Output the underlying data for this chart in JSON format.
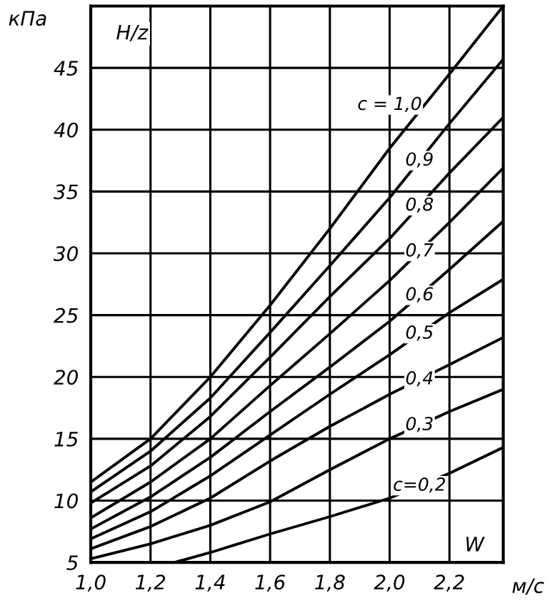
{
  "chart_data": {
    "type": "line",
    "ylabel": "кПа",
    "xlabel": "м/с",
    "annotations": [
      "H/z",
      "W"
    ],
    "xlim": [
      1.0,
      2.38
    ],
    "ylim": [
      5,
      50
    ],
    "xticks": [
      {
        "value": 1.0,
        "label": "1,0"
      },
      {
        "value": 1.2,
        "label": "1,2"
      },
      {
        "value": 1.4,
        "label": "1,4"
      },
      {
        "value": 1.6,
        "label": "1,6"
      },
      {
        "value": 1.8,
        "label": "1,8"
      },
      {
        "value": 2.0,
        "label": "2,0"
      },
      {
        "value": 2.2,
        "label": "2,2"
      }
    ],
    "yticks": [
      5,
      10,
      15,
      20,
      25,
      30,
      35,
      40,
      45
    ],
    "grid": true,
    "legend": false,
    "marker": "none",
    "line_style": "solid",
    "x": [
      1.0,
      1.2,
      1.4,
      1.6,
      1.8,
      2.0,
      2.2,
      2.38
    ],
    "series": [
      {
        "name": "c = 1,0",
        "color": "#000000",
        "values": [
          11.5,
          15,
          20,
          25.8,
          32,
          38.5,
          44.5,
          50
        ]
      },
      {
        "name": "0,9",
        "color": "#000000",
        "values": [
          10.7,
          14,
          18.3,
          23.6,
          29,
          34.5,
          40.5,
          45.7
        ]
      },
      {
        "name": "0,8",
        "color": "#000000",
        "values": [
          9.8,
          12.8,
          16.8,
          21.6,
          26.5,
          31.2,
          36.5,
          41.0
        ]
      },
      {
        "name": "0,7",
        "color": "#000000",
        "values": [
          8.6,
          11.5,
          15,
          19.3,
          23.5,
          27.8,
          32.5,
          36.9
        ]
      },
      {
        "name": "0,6",
        "color": "#000000",
        "values": [
          7.7,
          10.3,
          13.5,
          17.2,
          20.8,
          24.5,
          28.7,
          32.6
        ]
      },
      {
        "name": "0,5",
        "color": "#000000",
        "values": [
          6.9,
          9.1,
          12,
          15.3,
          18.6,
          21.8,
          25.2,
          27.9
        ]
      },
      {
        "name": "0,4",
        "color": "#000000",
        "values": [
          6.1,
          7.9,
          10.2,
          13.2,
          16.0,
          18.6,
          21.0,
          23.2
        ]
      },
      {
        "name": "0,3",
        "color": "#000000",
        "values": [
          5.3,
          6.5,
          8,
          9.9,
          12.5,
          15,
          17.2,
          19.0
        ]
      },
      {
        "name": "c=0,2",
        "color": "#000000",
        "x": [
          1.28,
          1.4,
          1.6,
          1.8,
          2.0,
          2.2,
          2.38
        ],
        "values": [
          5,
          5.8,
          7.3,
          8.7,
          10.2,
          12.2,
          14.3
        ]
      }
    ]
  }
}
